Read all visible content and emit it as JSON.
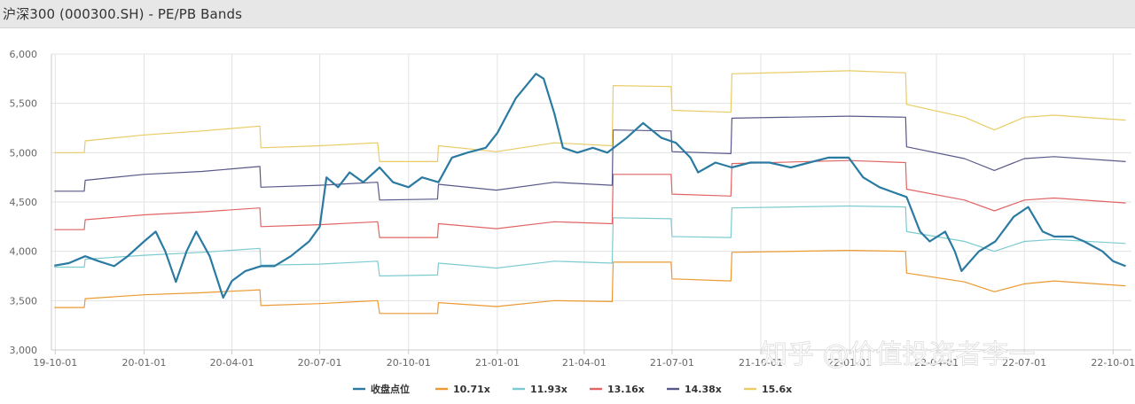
{
  "window": {
    "title": "沪深300 (000300.SH) - PE/PB Bands"
  },
  "watermark": "知乎 @价值投资者李一",
  "colors": {
    "price": "#2a7aa2",
    "b1": "#ec9932",
    "b2": "#7ccbd0",
    "b3": "#e06464",
    "b4": "#58588a",
    "b5": "#e9cc66",
    "grid": "#e3e3e3",
    "axis": "#cccccc"
  },
  "chart_data": {
    "type": "line",
    "title": "沪深300 (000300.SH) - PE/PB Bands",
    "xlabel": "",
    "ylabel": "",
    "ylim": [
      3000,
      6000
    ],
    "xlim": [
      "2019-09-27",
      "2022-10-20"
    ],
    "grid": true,
    "legend_position": "bottom",
    "x_ticks": [
      "19-10-01",
      "20-01-01",
      "20-04-01",
      "20-07-01",
      "20-10-01",
      "21-01-01",
      "21-04-01",
      "21-07-01",
      "21-10-01",
      "22-01-01",
      "22-04-01",
      "22-07-01",
      "22-10-01"
    ],
    "y_ticks": [
      "3,000",
      "3,500",
      "4,000",
      "4,500",
      "5,000",
      "5,500",
      "6,000"
    ],
    "series": [
      {
        "name": "收盘点位",
        "color_key": "price",
        "points": [
          [
            "2019-09-30",
            3855
          ],
          [
            "2019-10-15",
            3880
          ],
          [
            "2019-11-01",
            3950
          ],
          [
            "2019-11-15",
            3900
          ],
          [
            "2019-12-01",
            3850
          ],
          [
            "2019-12-15",
            3950
          ],
          [
            "2020-01-01",
            4100
          ],
          [
            "2020-01-13",
            4200
          ],
          [
            "2020-01-23",
            4000
          ],
          [
            "2020-02-03",
            3690
          ],
          [
            "2020-02-14",
            4000
          ],
          [
            "2020-02-24",
            4200
          ],
          [
            "2020-03-09",
            3950
          ],
          [
            "2020-03-23",
            3530
          ],
          [
            "2020-04-01",
            3700
          ],
          [
            "2020-04-15",
            3800
          ],
          [
            "2020-05-01",
            3850
          ],
          [
            "2020-05-15",
            3850
          ],
          [
            "2020-06-01",
            3950
          ],
          [
            "2020-06-20",
            4100
          ],
          [
            "2020-07-01",
            4250
          ],
          [
            "2020-07-08",
            4750
          ],
          [
            "2020-07-20",
            4650
          ],
          [
            "2020-08-01",
            4800
          ],
          [
            "2020-08-15",
            4700
          ],
          [
            "2020-09-01",
            4850
          ],
          [
            "2020-09-15",
            4700
          ],
          [
            "2020-10-01",
            4650
          ],
          [
            "2020-10-15",
            4750
          ],
          [
            "2020-11-01",
            4700
          ],
          [
            "2020-11-15",
            4950
          ],
          [
            "2020-12-01",
            5000
          ],
          [
            "2020-12-20",
            5050
          ],
          [
            "2021-01-01",
            5200
          ],
          [
            "2021-01-20",
            5550
          ],
          [
            "2021-02-10",
            5800
          ],
          [
            "2021-02-18",
            5750
          ],
          [
            "2021-03-01",
            5400
          ],
          [
            "2021-03-10",
            5050
          ],
          [
            "2021-03-25",
            5000
          ],
          [
            "2021-04-10",
            5050
          ],
          [
            "2021-04-25",
            5000
          ],
          [
            "2021-05-15",
            5150
          ],
          [
            "2021-06-01",
            5300
          ],
          [
            "2021-06-20",
            5150
          ],
          [
            "2021-07-05",
            5100
          ],
          [
            "2021-07-20",
            4950
          ],
          [
            "2021-07-28",
            4800
          ],
          [
            "2021-08-15",
            4900
          ],
          [
            "2021-09-01",
            4850
          ],
          [
            "2021-09-20",
            4900
          ],
          [
            "2021-10-10",
            4900
          ],
          [
            "2021-11-01",
            4850
          ],
          [
            "2021-11-20",
            4900
          ],
          [
            "2021-12-10",
            4950
          ],
          [
            "2021-12-31",
            4950
          ],
          [
            "2022-01-15",
            4750
          ],
          [
            "2022-02-01",
            4650
          ],
          [
            "2022-02-15",
            4600
          ],
          [
            "2022-03-01",
            4550
          ],
          [
            "2022-03-15",
            4200
          ],
          [
            "2022-03-25",
            4100
          ],
          [
            "2022-04-10",
            4200
          ],
          [
            "2022-04-20",
            4000
          ],
          [
            "2022-04-27",
            3800
          ],
          [
            "2022-05-15",
            4000
          ],
          [
            "2022-06-01",
            4100
          ],
          [
            "2022-06-20",
            4350
          ],
          [
            "2022-07-05",
            4450
          ],
          [
            "2022-07-20",
            4200
          ],
          [
            "2022-08-01",
            4150
          ],
          [
            "2022-08-20",
            4150
          ],
          [
            "2022-09-01",
            4100
          ],
          [
            "2022-09-20",
            4000
          ],
          [
            "2022-10-01",
            3900
          ],
          [
            "2022-10-14",
            3850
          ]
        ]
      },
      {
        "name": "10.71x",
        "color_key": "b1",
        "points": [
          [
            "2019-09-30",
            3430
          ],
          [
            "2019-10-31",
            3430
          ],
          [
            "2019-11-01",
            3520
          ],
          [
            "2020-01-01",
            3560
          ],
          [
            "2020-03-01",
            3580
          ],
          [
            "2020-04-30",
            3610
          ],
          [
            "2020-05-01",
            3450
          ],
          [
            "2020-07-01",
            3470
          ],
          [
            "2020-08-30",
            3500
          ],
          [
            "2020-09-01",
            3370
          ],
          [
            "2020-10-31",
            3370
          ],
          [
            "2020-11-01",
            3480
          ],
          [
            "2020-12-31",
            3440
          ],
          [
            "2021-03-01",
            3500
          ],
          [
            "2021-04-30",
            3490
          ],
          [
            "2021-05-01",
            3890
          ],
          [
            "2021-06-30",
            3890
          ],
          [
            "2021-07-01",
            3720
          ],
          [
            "2021-08-31",
            3700
          ],
          [
            "2021-09-01",
            3990
          ],
          [
            "2021-12-31",
            4010
          ],
          [
            "2022-01-01",
            4010
          ],
          [
            "2022-02-28",
            4000
          ],
          [
            "2022-03-01",
            3780
          ],
          [
            "2022-04-30",
            3690
          ],
          [
            "2022-05-31",
            3590
          ],
          [
            "2022-07-01",
            3670
          ],
          [
            "2022-08-01",
            3700
          ],
          [
            "2022-10-14",
            3650
          ]
        ]
      },
      {
        "name": "11.93x",
        "color_key": "b2",
        "points": [
          [
            "2019-09-30",
            3840
          ],
          [
            "2019-10-31",
            3840
          ],
          [
            "2019-11-01",
            3920
          ],
          [
            "2020-01-01",
            3960
          ],
          [
            "2020-03-01",
            3990
          ],
          [
            "2020-04-30",
            4030
          ],
          [
            "2020-05-01",
            3860
          ],
          [
            "2020-07-01",
            3870
          ],
          [
            "2020-08-30",
            3900
          ],
          [
            "2020-09-01",
            3750
          ],
          [
            "2020-10-31",
            3760
          ],
          [
            "2020-11-01",
            3880
          ],
          [
            "2020-12-31",
            3830
          ],
          [
            "2021-03-01",
            3900
          ],
          [
            "2021-04-30",
            3880
          ],
          [
            "2021-05-01",
            4340
          ],
          [
            "2021-06-30",
            4330
          ],
          [
            "2021-07-01",
            4150
          ],
          [
            "2021-08-31",
            4140
          ],
          [
            "2021-09-01",
            4440
          ],
          [
            "2021-12-31",
            4460
          ],
          [
            "2022-01-01",
            4460
          ],
          [
            "2022-02-28",
            4450
          ],
          [
            "2022-03-01",
            4200
          ],
          [
            "2022-04-30",
            4100
          ],
          [
            "2022-05-31",
            4000
          ],
          [
            "2022-07-01",
            4100
          ],
          [
            "2022-08-01",
            4120
          ],
          [
            "2022-10-14",
            4080
          ]
        ]
      },
      {
        "name": "13.16x",
        "color_key": "b3",
        "points": [
          [
            "2019-09-30",
            4220
          ],
          [
            "2019-10-31",
            4220
          ],
          [
            "2019-11-01",
            4320
          ],
          [
            "2020-01-01",
            4370
          ],
          [
            "2020-03-01",
            4400
          ],
          [
            "2020-04-30",
            4440
          ],
          [
            "2020-05-01",
            4250
          ],
          [
            "2020-07-01",
            4270
          ],
          [
            "2020-08-30",
            4300
          ],
          [
            "2020-09-01",
            4140
          ],
          [
            "2020-10-31",
            4140
          ],
          [
            "2020-11-01",
            4280
          ],
          [
            "2020-12-31",
            4230
          ],
          [
            "2021-03-01",
            4300
          ],
          [
            "2021-04-30",
            4280
          ],
          [
            "2021-05-01",
            4780
          ],
          [
            "2021-06-30",
            4780
          ],
          [
            "2021-07-01",
            4580
          ],
          [
            "2021-08-31",
            4560
          ],
          [
            "2021-09-01",
            4890
          ],
          [
            "2021-12-31",
            4920
          ],
          [
            "2022-01-01",
            4920
          ],
          [
            "2022-02-28",
            4900
          ],
          [
            "2022-03-01",
            4630
          ],
          [
            "2022-04-30",
            4520
          ],
          [
            "2022-05-31",
            4410
          ],
          [
            "2022-07-01",
            4520
          ],
          [
            "2022-08-01",
            4540
          ],
          [
            "2022-10-14",
            4490
          ]
        ]
      },
      {
        "name": "14.38x",
        "color_key": "b4",
        "points": [
          [
            "2019-09-30",
            4610
          ],
          [
            "2019-10-31",
            4610
          ],
          [
            "2019-11-01",
            4720
          ],
          [
            "2020-01-01",
            4780
          ],
          [
            "2020-03-01",
            4810
          ],
          [
            "2020-04-30",
            4860
          ],
          [
            "2020-05-01",
            4650
          ],
          [
            "2020-07-01",
            4670
          ],
          [
            "2020-08-30",
            4700
          ],
          [
            "2020-09-01",
            4520
          ],
          [
            "2020-10-31",
            4530
          ],
          [
            "2020-11-01",
            4680
          ],
          [
            "2020-12-31",
            4620
          ],
          [
            "2021-03-01",
            4700
          ],
          [
            "2021-04-30",
            4670
          ],
          [
            "2021-05-01",
            5230
          ],
          [
            "2021-06-30",
            5220
          ],
          [
            "2021-07-01",
            5010
          ],
          [
            "2021-08-31",
            4990
          ],
          [
            "2021-09-01",
            5350
          ],
          [
            "2021-12-31",
            5370
          ],
          [
            "2022-01-01",
            5370
          ],
          [
            "2022-02-28",
            5360
          ],
          [
            "2022-03-01",
            5060
          ],
          [
            "2022-04-30",
            4940
          ],
          [
            "2022-05-31",
            4820
          ],
          [
            "2022-07-01",
            4940
          ],
          [
            "2022-08-01",
            4960
          ],
          [
            "2022-10-14",
            4910
          ]
        ]
      },
      {
        "name": "15.6x",
        "color_key": "b5",
        "points": [
          [
            "2019-09-30",
            5000
          ],
          [
            "2019-10-31",
            5000
          ],
          [
            "2019-11-01",
            5120
          ],
          [
            "2020-01-01",
            5180
          ],
          [
            "2020-03-01",
            5220
          ],
          [
            "2020-04-30",
            5270
          ],
          [
            "2020-05-01",
            5050
          ],
          [
            "2020-07-01",
            5070
          ],
          [
            "2020-08-30",
            5100
          ],
          [
            "2020-09-01",
            4910
          ],
          [
            "2020-10-31",
            4910
          ],
          [
            "2020-11-01",
            5070
          ],
          [
            "2020-12-31",
            5010
          ],
          [
            "2021-03-01",
            5100
          ],
          [
            "2021-04-30",
            5070
          ],
          [
            "2021-05-01",
            5680
          ],
          [
            "2021-06-30",
            5670
          ],
          [
            "2021-07-01",
            5430
          ],
          [
            "2021-08-31",
            5410
          ],
          [
            "2021-09-01",
            5800
          ],
          [
            "2021-12-31",
            5830
          ],
          [
            "2022-01-01",
            5830
          ],
          [
            "2022-02-28",
            5810
          ],
          [
            "2022-03-01",
            5490
          ],
          [
            "2022-04-30",
            5360
          ],
          [
            "2022-05-31",
            5230
          ],
          [
            "2022-07-01",
            5360
          ],
          [
            "2022-08-01",
            5380
          ],
          [
            "2022-10-14",
            5330
          ]
        ]
      }
    ]
  }
}
